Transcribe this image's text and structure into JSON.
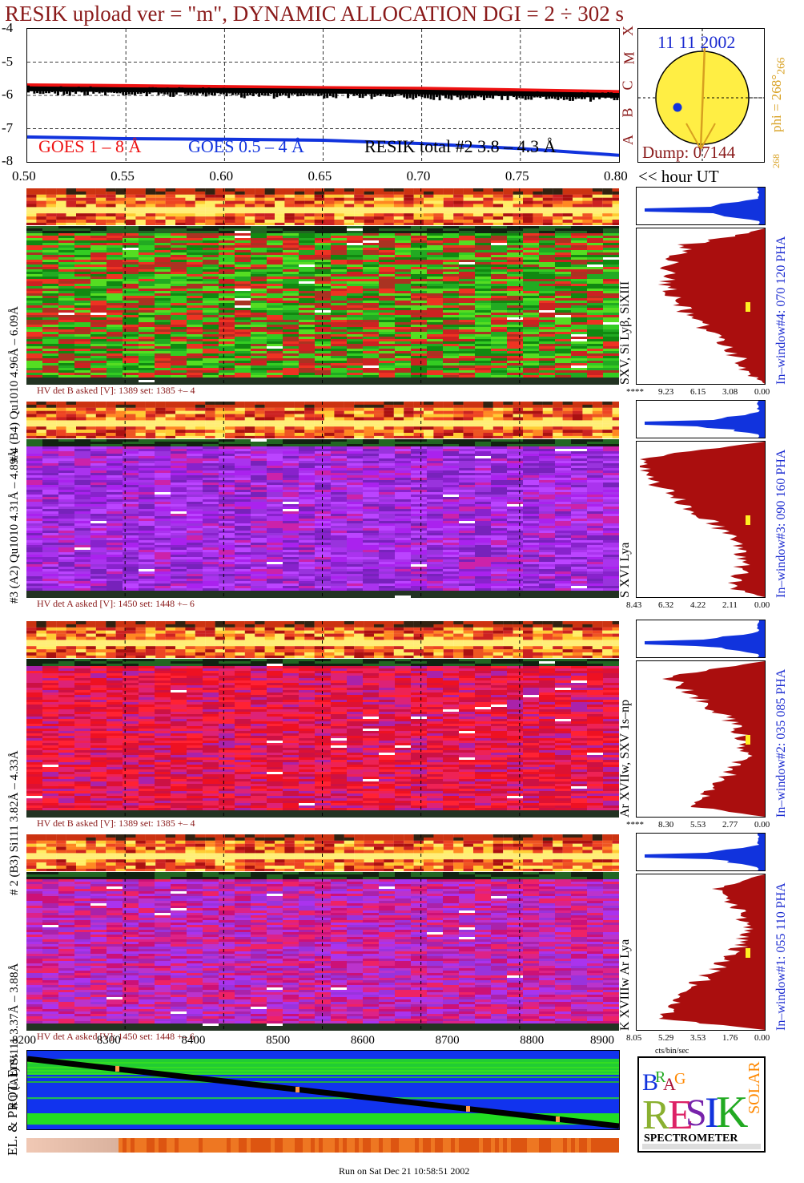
{
  "title": "RESIK upload ver = \"m\", DYNAMIC ALLOCATION  DGI =   2 ÷ 302 s",
  "chart_data": [
    {
      "type": "line",
      "name": "goes-lightcurve",
      "x": [
        0.5,
        0.55,
        0.6,
        0.65,
        0.7,
        0.75,
        0.8
      ],
      "ylim": [
        -8,
        -4
      ],
      "xlim": [
        0.5,
        0.8
      ],
      "yticks": [
        "-4",
        "-5",
        "-6",
        "-7",
        "-8"
      ],
      "xticks": [
        "0.50",
        "0.55",
        "0.60",
        "0.65",
        "0.70",
        "0.75",
        "0.80"
      ],
      "xlabel": "<< hour UT",
      "grid": true,
      "legend": [
        "GOES 1 – 8 Å",
        "GOES 0.5 – 4 Å",
        "RESIK total #2  3.8 – 4.3 Å"
      ],
      "series": [
        {
          "values": [
            -5.7,
            -5.72,
            -5.75,
            -5.78,
            -5.8,
            -5.85,
            -5.9
          ],
          "color": "#ee1111"
        },
        {
          "values": [
            -7.25,
            -7.3,
            -7.32,
            -7.35,
            -7.45,
            -7.6,
            -7.8
          ],
          "color": "#1133dd"
        },
        {
          "values": [
            -5.8,
            -5.83,
            -5.85,
            -5.87,
            -5.9,
            -5.95,
            -6.0
          ],
          "color": "#000000"
        }
      ]
    },
    {
      "type": "other",
      "name": "sun-position",
      "date": "11 11 2002",
      "dump": "Dump: 07144",
      "phi_label": "phi = 268°",
      "phi_sub": "266",
      "phi_low": "268",
      "side_letters": [
        "X",
        "M",
        "C",
        "B",
        "A"
      ]
    },
    {
      "type": "heatmap",
      "name": "spectrogram-panels",
      "panels": [
        {
          "label": "# 4 (B4) Qu1010 4.96Å – 6.09Å",
          "hv": "HV det B asked [V]:  1389 set:  1385 +–    4",
          "lines": "SXV, Si Lyβ, SiXIII",
          "window": "In–window#4:  070 120 PHA",
          "ticks": [
            "****",
            "9.23",
            "6.15",
            "3.08",
            "0.00"
          ],
          "palette": "green"
        },
        {
          "label": "#3 (A2) Qu1010  4.31Å – 4.89Å",
          "hv": "HV det A asked [V]:  1450 set:  1448 +–    6",
          "lines": "S XVI Lya",
          "window": "In–window#3:  090 160 PHA",
          "ticks": [
            "8.43",
            "6.32",
            "4.22",
            "2.11",
            "0.00"
          ],
          "palette": "purple"
        },
        {
          "label": "# 2 (B3) Si111  3.82Å – 4.33Å",
          "hv": "HV det B asked [V]:  1389 set:  1385 +–    4",
          "lines": "Ar XVIIw,  SXV 1s–np",
          "window": "In–window#2:  035 085 PHA",
          "ticks": [
            "****",
            "8.30",
            "5.53",
            "2.77",
            "0.00"
          ],
          "palette": "red"
        },
        {
          "label": "# 1 (A1) Si111  3.37Å – 3.88Å",
          "hv": "HV det A asked [V]:  1450 set:  1448 +–    6",
          "lines": "K XVIIIw  Ar Lya",
          "window": "In–window#1:  055 110 PHA",
          "ticks": [
            "8.05",
            "5.29",
            "3.53",
            "1.76",
            "0.00"
          ],
          "palette": "magenta"
        }
      ],
      "hist_xlabel": "cts/bin/sec"
    },
    {
      "type": "other",
      "name": "environment-panel",
      "xticks": [
        "8200",
        "8300",
        "8400",
        "8500",
        "8600",
        "8700",
        "8800",
        "8900"
      ],
      "ylabel": "EL. & PROT. Env."
    }
  ],
  "footer": "Run on Sat Dec 21 10:58:51 2002",
  "logo": {
    "text": "SPECTROMETER",
    "letters": [
      "B",
      "R",
      "A",
      "G",
      "R",
      "E",
      "S",
      "I",
      "K",
      "S",
      "O",
      "L",
      "A",
      "R"
    ]
  }
}
